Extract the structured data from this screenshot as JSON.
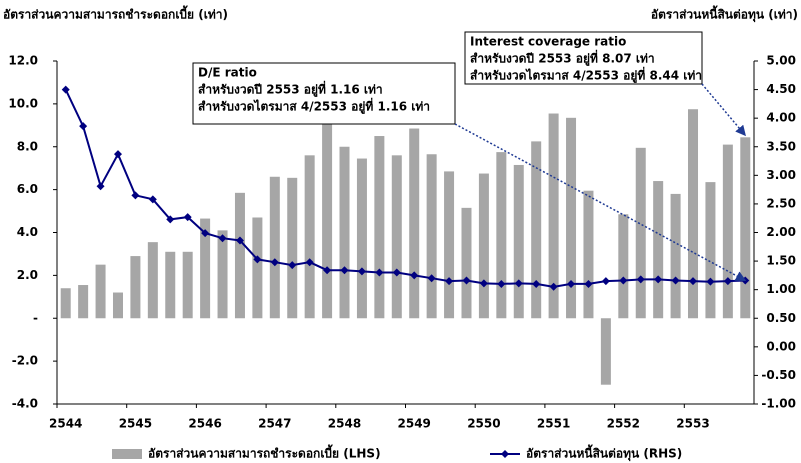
{
  "chart_data": {
    "type": "combo",
    "y_title": "อัตราส่วนความสามารถชำระดอกเบี้ย (เท่า)",
    "y2_title": "อัตราส่วนหนี้สินต่อทุน (เท่า)",
    "categories": [
      "2544",
      null,
      null,
      null,
      "2545",
      null,
      null,
      null,
      "2546",
      null,
      null,
      null,
      "2547",
      null,
      null,
      null,
      "2548",
      null,
      null,
      null,
      "2549",
      null,
      null,
      null,
      "2550",
      null,
      null,
      null,
      "2551",
      null,
      null,
      null,
      "2552",
      null,
      null,
      null,
      "2553",
      null,
      null,
      null
    ],
    "series": [
      {
        "name": "อัตราส่วนความสามารถชำระดอกเบี้ย (LHS)",
        "type": "bar",
        "axis": "y",
        "color": "#a6a6a6",
        "values": [
          1.4,
          1.55,
          2.5,
          1.2,
          2.9,
          3.55,
          3.1,
          3.1,
          4.65,
          4.1,
          5.85,
          4.7,
          6.6,
          6.55,
          7.6,
          9.2,
          8.0,
          7.45,
          8.5,
          7.6,
          8.85,
          7.65,
          6.85,
          5.15,
          6.75,
          7.75,
          7.15,
          8.25,
          9.55,
          9.35,
          5.95,
          -3.1,
          4.85,
          7.95,
          6.4,
          5.8,
          9.75,
          6.35,
          8.1,
          8.44
        ]
      },
      {
        "name": "อัตราส่วนหนี้สินต่อทุน (RHS)",
        "type": "line",
        "axis": "y2",
        "color": "#000080",
        "values": [
          4.5,
          3.86,
          2.81,
          3.37,
          2.65,
          2.58,
          2.23,
          2.27,
          1.99,
          1.9,
          1.86,
          1.53,
          1.48,
          1.43,
          1.48,
          1.34,
          1.34,
          1.32,
          1.3,
          1.3,
          1.25,
          1.2,
          1.15,
          1.16,
          1.11,
          1.1,
          1.11,
          1.1,
          1.05,
          1.1,
          1.1,
          1.15,
          1.16,
          1.18,
          1.18,
          1.16,
          1.15,
          1.14,
          1.15,
          1.16
        ]
      }
    ],
    "ylim": [
      -4,
      12
    ],
    "yticks": [
      {
        "value": 12,
        "label": "12.0"
      },
      {
        "value": 10,
        "label": "10.0"
      },
      {
        "value": 8,
        "label": "8.0"
      },
      {
        "value": 6,
        "label": "6.0"
      },
      {
        "value": 4,
        "label": "4.0"
      },
      {
        "value": 2,
        "label": "2.0"
      },
      {
        "value": 0,
        "label": "-"
      },
      {
        "value": -2,
        "label": "-2.0"
      },
      {
        "value": -4,
        "label": "-4.0"
      }
    ],
    "y2lim": [
      -1,
      5
    ],
    "y2ticks": [
      {
        "value": 5,
        "label": "5.00"
      },
      {
        "value": 4.5,
        "label": "4.50"
      },
      {
        "value": 4,
        "label": "4.00"
      },
      {
        "value": 3.5,
        "label": "3.50"
      },
      {
        "value": 3,
        "label": "3.00"
      },
      {
        "value": 2.5,
        "label": "2.50"
      },
      {
        "value": 2,
        "label": "2.00"
      },
      {
        "value": 1.5,
        "label": "1.50"
      },
      {
        "value": 1,
        "label": "1.00"
      },
      {
        "value": 0.5,
        "label": "0.50"
      },
      {
        "value": 0,
        "label": "0.00"
      },
      {
        "value": -0.5,
        "label": "-0.50"
      },
      {
        "value": -1,
        "label": "-1.00"
      }
    ],
    "negative_tick_color": "#ff0000",
    "grid": false,
    "legend": "bottom",
    "annotations": [
      {
        "lines": [
          "D/E ratio",
          "สำหรับงวดปี 2553 อยู่ที่ 1.16 เท่า",
          "สำหรับงวดไตรมาส 4/2553 อยู่ที่ 1.16 เท่า"
        ]
      },
      {
        "lines": [
          "Interest coverage ratio",
          "สำหรับงวดปี 2553 อยู่ที่ 8.07 เท่า",
          "สำหรับงวดไตรมาส 4/2553 อยู่ที่ 8.44 เท่า"
        ]
      }
    ]
  }
}
